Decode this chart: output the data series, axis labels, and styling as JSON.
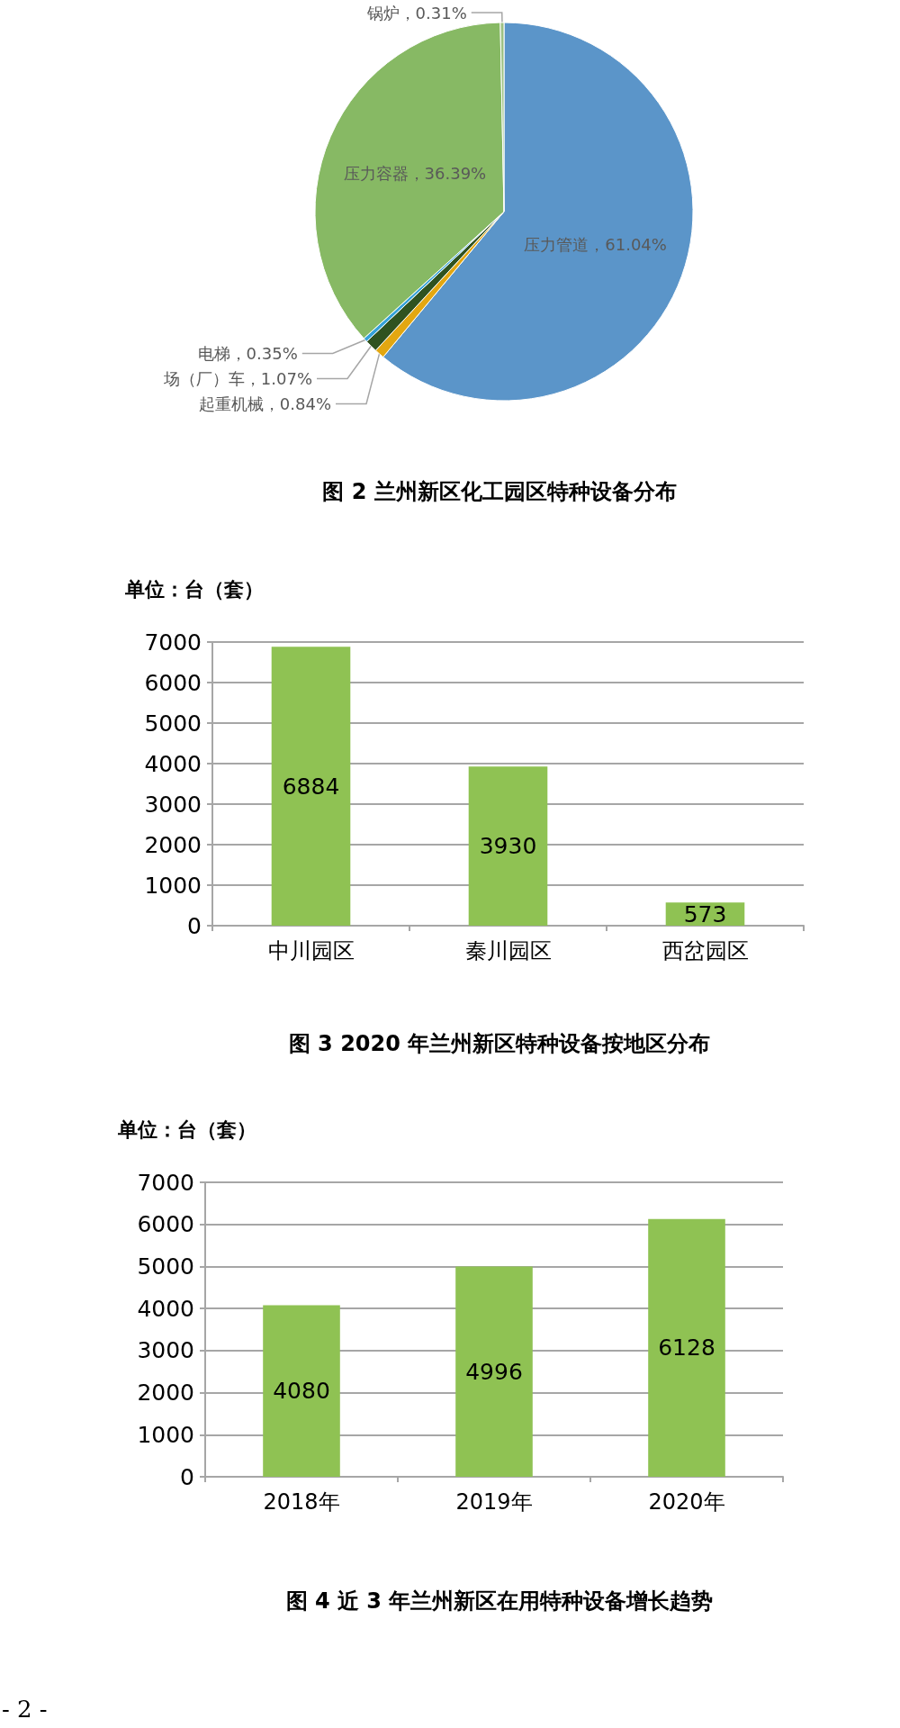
{
  "chart_data": [
    {
      "type": "pie",
      "title": "图 2 兰州新区化工园区特种设备分布",
      "categories": [
        "压力管道",
        "起重机械",
        "场（厂）车",
        "电梯",
        "压力容器",
        "锅炉"
      ],
      "values": [
        61.04,
        0.84,
        1.07,
        0.35,
        36.39,
        0.31
      ],
      "colors": [
        "#5b95c9",
        "#e3a711",
        "#2f5220",
        "#35a2d9",
        "#87b964",
        "#9dc183"
      ],
      "value_labels": [
        "61.04%",
        "0.84%",
        "1.07%",
        "0.35%",
        "36.39%",
        "0.31%"
      ]
    },
    {
      "type": "bar",
      "title": "图 3 2020 年兰州新区特种设备按地区分布",
      "ylabel": "单位：台（套）",
      "categories": [
        "中川园区",
        "秦川园区",
        "西岔园区"
      ],
      "values": [
        6884,
        3930,
        573
      ],
      "color": "#8fc253",
      "ylim": [
        0,
        7000
      ],
      "yticks": [
        0,
        1000,
        2000,
        3000,
        4000,
        5000,
        6000,
        7000
      ],
      "grid": "y",
      "data_labels": true
    },
    {
      "type": "bar",
      "title": "图 4 近 3 年兰州新区在用特种设备增长趋势",
      "ylabel": "单位：台（套）",
      "categories": [
        "2018年",
        "2019年",
        "2020年"
      ],
      "values": [
        4080,
        4996,
        6128
      ],
      "color": "#8fc253",
      "ylim": [
        0,
        7000
      ],
      "yticks": [
        0,
        1000,
        2000,
        3000,
        4000,
        5000,
        6000,
        7000
      ],
      "grid": "y",
      "data_labels": true,
      "annotations": [
        "- 2 -"
      ]
    }
  ]
}
